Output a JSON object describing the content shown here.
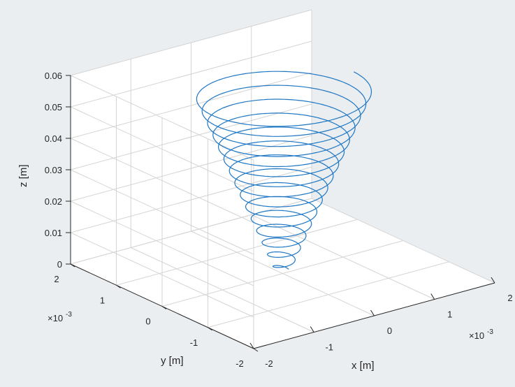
{
  "figure": {
    "background": "#eaeef1"
  },
  "chart_data": {
    "type": "line",
    "projection": "3d",
    "title": "",
    "xlabel": "x [m]",
    "ylabel": "y [m]",
    "zlabel": "z [m]",
    "xlim": [
      -0.002,
      0.002
    ],
    "ylim": [
      -0.002,
      0.002
    ],
    "zlim": [
      0,
      0.06
    ],
    "x_ticks": [
      -0.002,
      -0.001,
      0,
      0.001,
      0.002
    ],
    "y_ticks": [
      -0.002,
      -0.001,
      0,
      0.001,
      0.002
    ],
    "z_ticks": [
      0,
      0.01,
      0.02,
      0.03,
      0.04,
      0.05,
      0.06
    ],
    "x_tick_labels": [
      "-2",
      "-1",
      "0",
      "1",
      "2"
    ],
    "y_tick_labels": [
      "-2",
      "-1",
      "0",
      "1",
      "2"
    ],
    "z_tick_labels": [
      "0",
      "0.01",
      "0.02",
      "0.03",
      "0.04",
      "0.05",
      "0.06"
    ],
    "x_exponent": "×10-3",
    "y_exponent": "×10-3",
    "grid": true,
    "box": false,
    "series": [
      {
        "color": "#1f77c4",
        "shape": "conical helix",
        "turns": 15,
        "z_range": [
          0.0008,
          0.058
        ],
        "radius_range": [
          0.0001,
          0.00118
        ]
      }
    ],
    "colors": {
      "grid": "#d4d4d4",
      "axis": "#262626",
      "pane": "#ffffff"
    }
  }
}
